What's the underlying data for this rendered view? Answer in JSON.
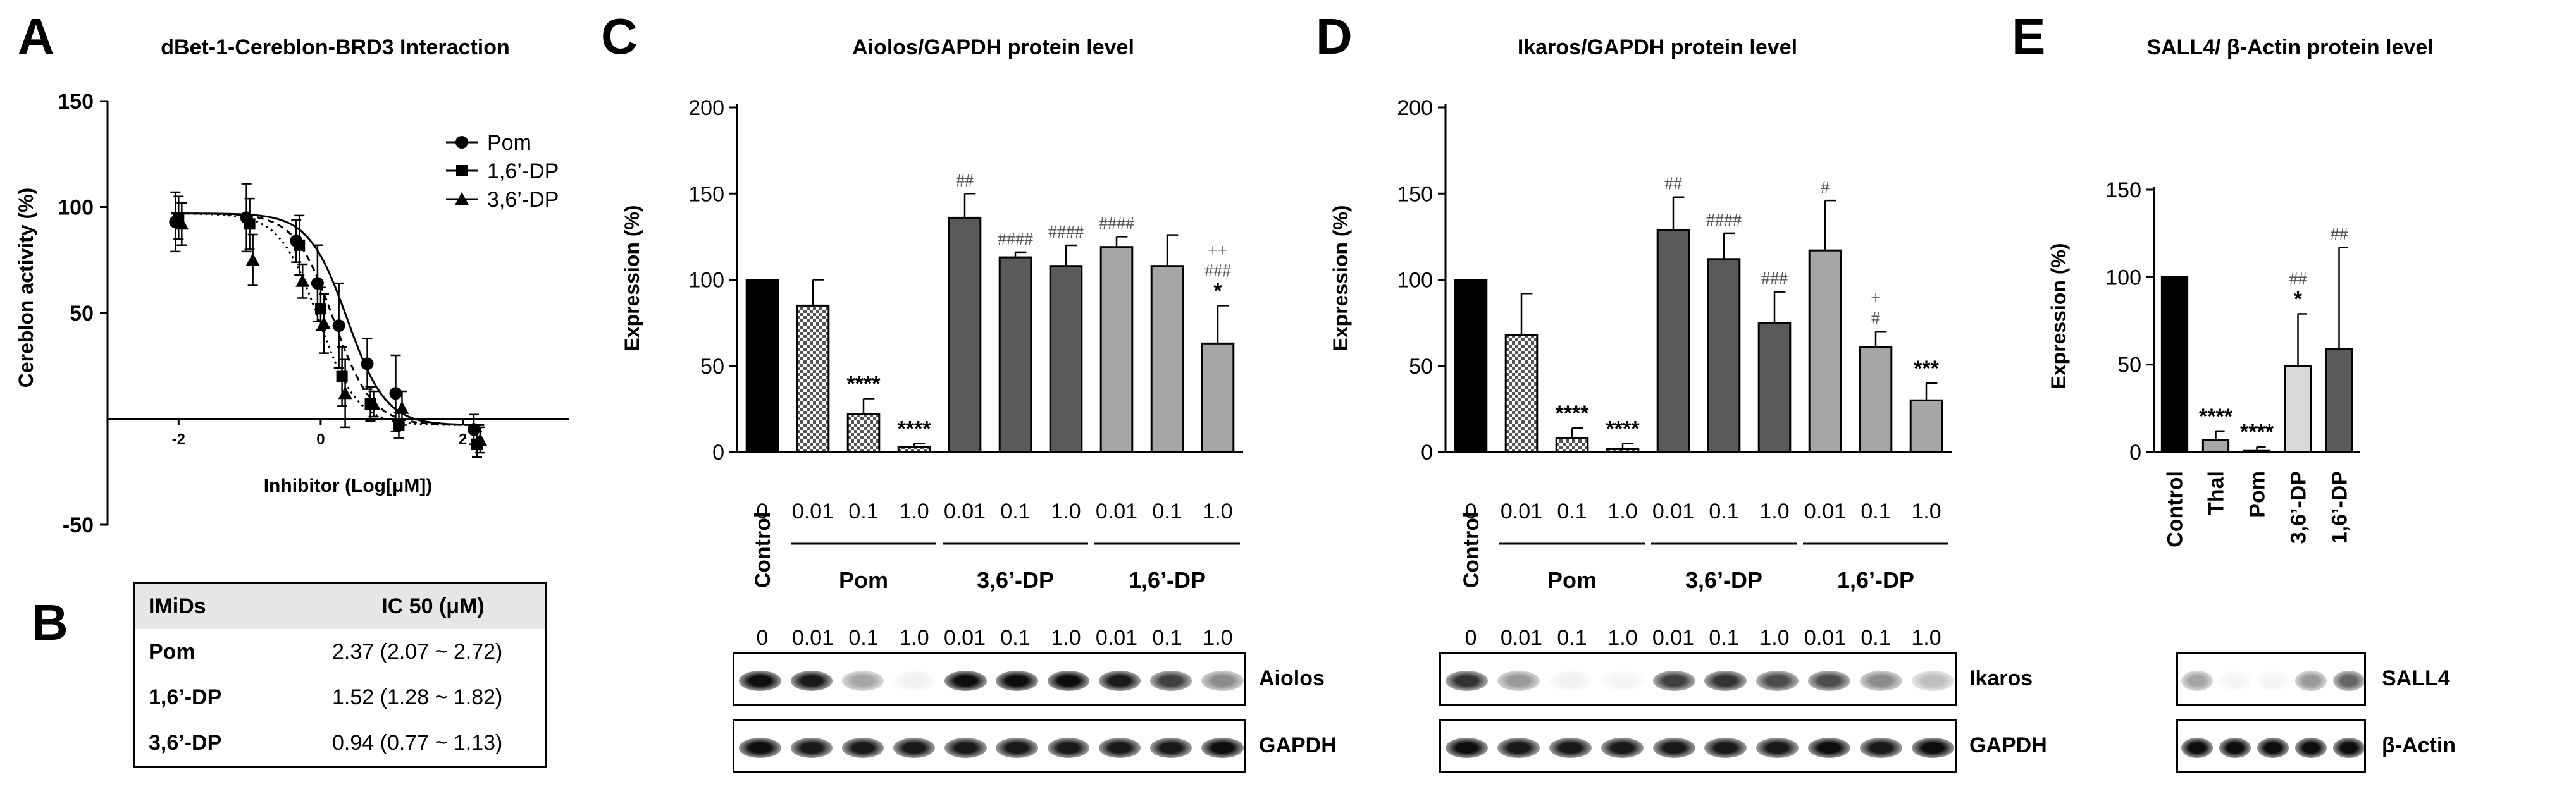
{
  "panel_letters": {
    "a": "A",
    "b": "B",
    "c": "C",
    "d": "D",
    "e": "E"
  },
  "chart_data": [
    {
      "id": "A",
      "type": "scatter",
      "title": "dBet-1-Cereblon-BRD3 Interaction",
      "xlabel": "Inhibitor (Log[μM])",
      "ylabel": "Cereblon activity (%)",
      "ylim": [
        -50,
        150
      ],
      "yticks": [
        "150",
        "100",
        "50",
        "-50"
      ],
      "xticks": [
        "-2",
        "0",
        "2"
      ],
      "xlim": [
        -3,
        3.5
      ],
      "legend_position": "top-right",
      "series": [
        {
          "name": "Pom",
          "marker": "circle",
          "line": "solid",
          "ic50_log": 0.375,
          "x": [
            -2,
            -1,
            -0.3,
            0,
            0.3,
            0.7,
            1.1,
            2.2
          ],
          "y": [
            93,
            95,
            84,
            64,
            44,
            26,
            12,
            -5
          ],
          "err": [
            14,
            16,
            10,
            18,
            20,
            12,
            18,
            7
          ]
        },
        {
          "name": "1,6’-DP",
          "marker": "square",
          "line": "dashed",
          "ic50_log": 0.18,
          "x": [
            -2,
            -1,
            -0.3,
            0,
            0.3,
            0.7,
            1.1,
            2.2
          ],
          "y": [
            95,
            92,
            82,
            52,
            20,
            7,
            -3,
            -12
          ],
          "err": [
            10,
            12,
            14,
            10,
            14,
            8,
            6,
            6
          ]
        },
        {
          "name": "3,6’-DP",
          "marker": "triangle",
          "line": "dotted",
          "ic50_log": -0.03,
          "x": [
            -2,
            -1,
            -0.3,
            0,
            0.3,
            0.7,
            1.1,
            2.2
          ],
          "y": [
            92,
            75,
            65,
            45,
            12,
            7,
            5,
            -10
          ],
          "err": [
            10,
            12,
            8,
            14,
            16,
            6,
            8,
            6
          ]
        }
      ]
    },
    {
      "id": "C",
      "type": "bar",
      "title": "Aiolos/GAPDH protein level",
      "ylabel": "Expression (%)",
      "ylim": [
        0,
        200
      ],
      "yticks": [
        "0",
        "50",
        "100",
        "150",
        "200"
      ],
      "categories": [
        "Control",
        "0.01",
        "0.1",
        "1.0",
        "0.01",
        "0.1",
        "1.0",
        "0.01",
        "0.1",
        "1.0"
      ],
      "values": [
        100,
        85,
        22,
        3,
        136,
        113,
        108,
        119,
        108,
        63
      ],
      "errors": [
        0,
        15,
        9,
        2,
        14,
        3,
        12,
        6,
        18,
        22
      ],
      "fills": [
        "black",
        "check",
        "check",
        "check",
        "dark",
        "dark",
        "dark",
        "light",
        "light",
        "light"
      ],
      "annotations": [
        [],
        [],
        [
          "****"
        ],
        [
          "****"
        ],
        [
          "##"
        ],
        [
          "####"
        ],
        [
          "####"
        ],
        [
          "####"
        ],
        [],
        [
          "++",
          "###",
          "*"
        ]
      ],
      "groups": [
        "Pom",
        "3,6’-DP",
        "1,6’-DP"
      ],
      "dose_zero": "0",
      "control_label": "Control"
    },
    {
      "id": "D",
      "type": "bar",
      "title": "Ikaros/GAPDH protein level",
      "ylabel": "Expression (%)",
      "ylim": [
        0,
        200
      ],
      "yticks": [
        "0",
        "50",
        "100",
        "150",
        "200"
      ],
      "categories": [
        "Control",
        "0.01",
        "0.1",
        "1.0",
        "0.01",
        "0.1",
        "1.0",
        "0.01",
        "0.1",
        "1.0"
      ],
      "values": [
        100,
        68,
        8,
        2,
        129,
        112,
        75,
        117,
        61,
        30
      ],
      "errors": [
        0,
        24,
        6,
        3,
        19,
        15,
        18,
        29,
        9,
        10
      ],
      "fills": [
        "black",
        "check",
        "check",
        "check",
        "dark",
        "dark",
        "dark",
        "light",
        "light",
        "light"
      ],
      "annotations": [
        [],
        [],
        [
          "****"
        ],
        [
          "****"
        ],
        [
          "##"
        ],
        [
          "####"
        ],
        [
          "###"
        ],
        [
          "#"
        ],
        [
          "+",
          "#"
        ],
        [
          "***"
        ]
      ],
      "groups": [
        "Pom",
        "3,6’-DP",
        "1,6’-DP"
      ],
      "dose_zero": "0",
      "control_label": "Control"
    },
    {
      "id": "E",
      "type": "bar",
      "title": "SALL4/ β-Actin protein level",
      "ylabel": "Expression (%)",
      "ylim": [
        0,
        150
      ],
      "yticks": [
        "0",
        "50",
        "100",
        "150"
      ],
      "categories": [
        "Control",
        "Thal",
        "Pom",
        "3,6’-DP",
        "1,6’-DP"
      ],
      "values": [
        100,
        7,
        1,
        49,
        59
      ],
      "errors": [
        0,
        5,
        2,
        30,
        58
      ],
      "fills": [
        "black",
        "light",
        "check",
        "pale",
        "dark"
      ],
      "annotations": [
        [],
        [
          "****"
        ],
        [
          "****"
        ],
        [
          "##",
          "*"
        ],
        [
          "##"
        ]
      ]
    }
  ],
  "table_b": {
    "headers": [
      "IMiDs",
      "IC 50 (μM)"
    ],
    "rows": [
      {
        "name": "Pom",
        "value": "2.37 (2.07 ~ 2.72)"
      },
      {
        "name": "1,6’-DP",
        "value": "1.52 (1.28 ~ 1.82)"
      },
      {
        "name": "3,6’-DP",
        "value": "0.94 (0.77 ~ 1.13)"
      }
    ]
  },
  "blots": {
    "c_doses": [
      "0",
      "0.01",
      "0.1",
      "1.0",
      "0.01",
      "0.1",
      "1.0",
      "0.01",
      "0.1",
      "1.0"
    ],
    "c_rows": [
      "Aiolos",
      "GAPDH"
    ],
    "c_intensity": [
      [
        0.95,
        0.9,
        0.35,
        0.05,
        0.95,
        0.95,
        0.95,
        0.9,
        0.75,
        0.45
      ],
      [
        0.95,
        0.9,
        0.9,
        0.9,
        0.9,
        0.9,
        0.9,
        0.9,
        0.9,
        0.95
      ]
    ],
    "d_doses": [
      "0",
      "0.01",
      "0.1",
      "1.0",
      "0.01",
      "0.1",
      "1.0",
      "0.01",
      "0.1",
      "1.0"
    ],
    "d_rows": [
      "Ikaros",
      "GAPDH"
    ],
    "d_intensity": [
      [
        0.8,
        0.4,
        0.05,
        0.03,
        0.75,
        0.8,
        0.7,
        0.7,
        0.45,
        0.25
      ],
      [
        0.95,
        0.9,
        0.9,
        0.9,
        0.9,
        0.9,
        0.9,
        0.95,
        0.9,
        0.95
      ]
    ],
    "e_rows": [
      "SALL4",
      "β-Actin"
    ],
    "e_intensity": [
      [
        0.35,
        0.02,
        0.02,
        0.4,
        0.6
      ],
      [
        0.95,
        0.95,
        0.95,
        0.95,
        0.95
      ]
    ]
  }
}
